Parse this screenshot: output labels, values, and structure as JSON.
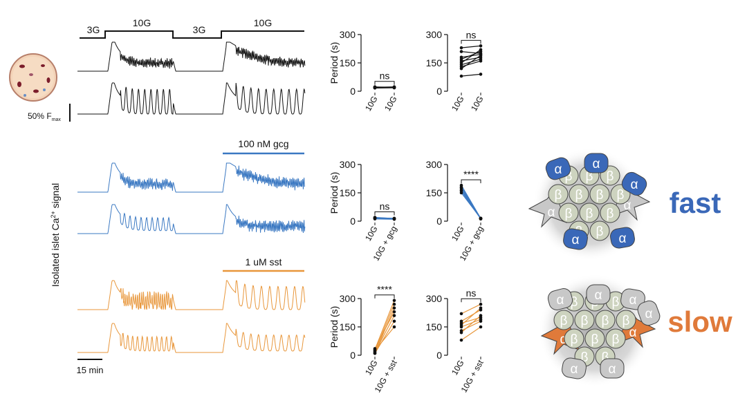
{
  "chart_data": [
    {
      "type": "paired",
      "ylabel": "Period (s)",
      "categories": [
        "10G",
        "10G"
      ],
      "ylim": [
        0,
        300
      ],
      "yticks": [
        0,
        150,
        300
      ],
      "marker_color": "#111",
      "annotation": "ns",
      "series": [
        {
          "color": "#111",
          "values": [
            18,
            20
          ]
        },
        {
          "color": "#111",
          "values": [
            20,
            22
          ]
        },
        {
          "color": "#111",
          "values": [
            22,
            19
          ]
        },
        {
          "color": "#111",
          "values": [
            19,
            21
          ]
        },
        {
          "color": "#111",
          "values": [
            21,
            23
          ]
        },
        {
          "color": "#111",
          "values": [
            23,
            20
          ]
        },
        {
          "color": "#111",
          "values": [
            17,
            18
          ]
        }
      ]
    },
    {
      "type": "paired",
      "categories": [
        "10G",
        "10G"
      ],
      "ylim": [
        0,
        300
      ],
      "yticks": [
        0,
        150,
        300
      ],
      "marker_color": "#111",
      "annotation": "ns",
      "series": [
        {
          "color": "#111",
          "values": [
            230,
            240
          ]
        },
        {
          "color": "#111",
          "values": [
            210,
            200
          ]
        },
        {
          "color": "#111",
          "values": [
            180,
            195
          ]
        },
        {
          "color": "#111",
          "values": [
            170,
            210
          ]
        },
        {
          "color": "#111",
          "values": [
            160,
            180
          ]
        },
        {
          "color": "#111",
          "values": [
            150,
            220
          ]
        },
        {
          "color": "#111",
          "values": [
            140,
            170
          ]
        },
        {
          "color": "#111",
          "values": [
            130,
            160
          ]
        },
        {
          "color": "#111",
          "values": [
            120,
            190
          ]
        },
        {
          "color": "#111",
          "values": [
            80,
            90
          ]
        }
      ]
    },
    {
      "type": "paired",
      "ylabel": "Period (s)",
      "categories": [
        "10G",
        "10G + gcg"
      ],
      "ylim": [
        0,
        300
      ],
      "yticks": [
        0,
        150,
        300
      ],
      "marker_color": "#111",
      "annotation": "ns",
      "series": [
        {
          "color": "#3a78c2",
          "values": [
            20,
            14
          ]
        },
        {
          "color": "#3a78c2",
          "values": [
            15,
            12
          ]
        },
        {
          "color": "#3a78c2",
          "values": [
            18,
            15
          ]
        },
        {
          "color": "#3a78c2",
          "values": [
            12,
            10
          ]
        },
        {
          "color": "#3a78c2",
          "values": [
            16,
            13
          ]
        }
      ]
    },
    {
      "type": "paired",
      "categories": [
        "10G",
        "10G + gcg"
      ],
      "ylim": [
        0,
        300
      ],
      "yticks": [
        0,
        150,
        300
      ],
      "marker_color": "#111",
      "annotation": "****",
      "series": [
        {
          "color": "#3a78c2",
          "values": [
            190,
            15
          ]
        },
        {
          "color": "#3a78c2",
          "values": [
            180,
            15
          ]
        },
        {
          "color": "#3a78c2",
          "values": [
            175,
            12
          ]
        },
        {
          "color": "#3a78c2",
          "values": [
            165,
            15
          ]
        },
        {
          "color": "#3a78c2",
          "values": [
            160,
            12
          ]
        },
        {
          "color": "#3a78c2",
          "values": [
            150,
            15
          ]
        }
      ]
    },
    {
      "type": "paired",
      "ylabel": "Period (s)",
      "categories": [
        "10G",
        "10G + sst"
      ],
      "ylim": [
        0,
        300
      ],
      "yticks": [
        0,
        150,
        300
      ],
      "marker_color": "#111",
      "annotation": "****",
      "series": [
        {
          "color": "#e8963a",
          "values": [
            30,
            290
          ]
        },
        {
          "color": "#e8963a",
          "values": [
            20,
            270
          ]
        },
        {
          "color": "#e8963a",
          "values": [
            10,
            250
          ]
        },
        {
          "color": "#e8963a",
          "values": [
            35,
            230
          ]
        },
        {
          "color": "#e8963a",
          "values": [
            15,
            210
          ]
        },
        {
          "color": "#e8963a",
          "values": [
            10,
            180
          ]
        },
        {
          "color": "#e8963a",
          "values": [
            25,
            150
          ]
        }
      ]
    },
    {
      "type": "paired",
      "categories": [
        "10G",
        "10G + sst"
      ],
      "ylim": [
        0,
        300
      ],
      "yticks": [
        0,
        150,
        300
      ],
      "marker_color": "#111",
      "annotation": "ns",
      "series": [
        {
          "color": "#e8963a",
          "values": [
            220,
            270
          ]
        },
        {
          "color": "#e8963a",
          "values": [
            180,
            240
          ]
        },
        {
          "color": "#e8963a",
          "values": [
            170,
            200
          ]
        },
        {
          "color": "#e8963a",
          "values": [
            160,
            250
          ]
        },
        {
          "color": "#e8963a",
          "values": [
            150,
            190
          ]
        },
        {
          "color": "#e8963a",
          "values": [
            130,
            180
          ]
        },
        {
          "color": "#e8963a",
          "values": [
            120,
            210
          ]
        },
        {
          "color": "#e8963a",
          "values": [
            80,
            150
          ]
        }
      ]
    }
  ],
  "figure": {
    "protocol": [
      "3G",
      "10G",
      "3G",
      "10G"
    ],
    "scale_y": {
      "main": "50% F",
      "sub": "max"
    },
    "scale_x": "15 min",
    "gcg_label": "100 nM gcg",
    "sst_label": "1 uM sst",
    "ylabel": {
      "main": "Isolated islet Ca",
      "sup": "2+",
      "rest": " signal"
    },
    "fast": "fast",
    "slow": "slow",
    "alpha": "α",
    "beta": "β"
  }
}
